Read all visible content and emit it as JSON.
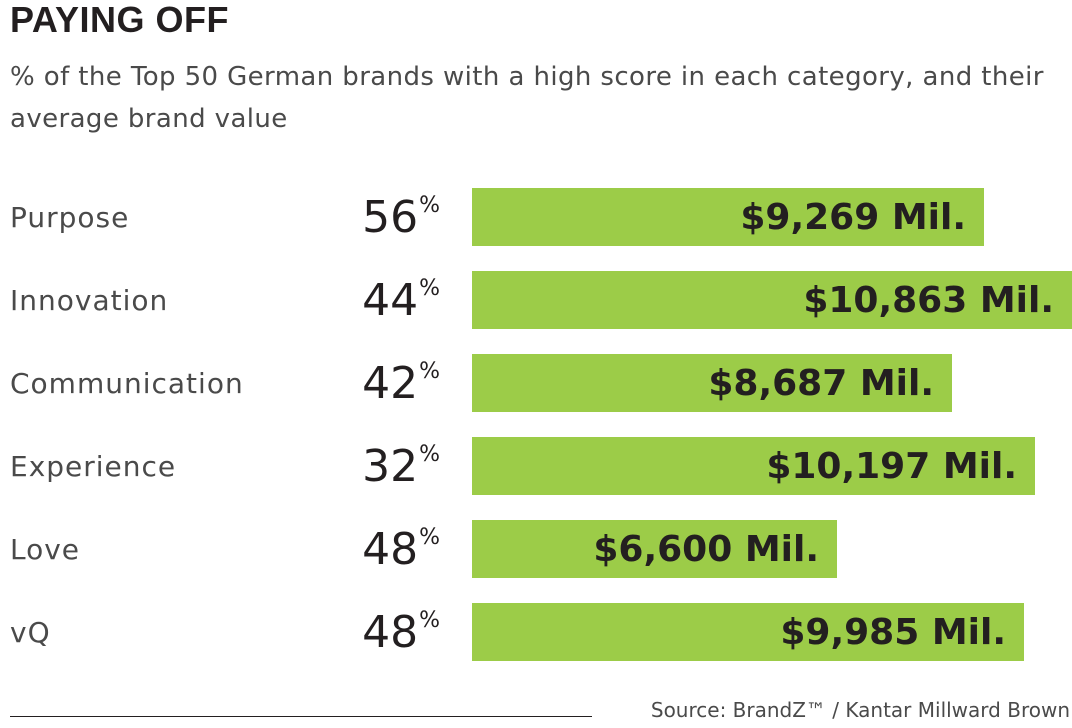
{
  "chart_data": {
    "type": "bar",
    "orientation": "horizontal",
    "title": "PAYING OFF",
    "subtitle": "% of the Top 50 German brands with a high score in each category, and their average brand value",
    "categories": [
      "Purpose",
      "Innovation",
      "Communication",
      "Experience",
      "Love",
      "vQ"
    ],
    "percent_high_score": [
      56,
      44,
      42,
      32,
      48,
      48
    ],
    "percent_suffix": "%",
    "series": [
      {
        "name": "Average brand value ($ Mil.)",
        "values": [
          9269,
          10863,
          8687,
          10197,
          6600,
          9985
        ],
        "labels": [
          "$9,269 Mil.",
          "$10,863 Mil.",
          "$8,687 Mil.",
          "$10,197 Mil.",
          "$6,600 Mil.",
          "$9,985 Mil."
        ]
      }
    ],
    "xlim": [
      0,
      10863
    ],
    "bar_color": "#9ccc48",
    "grid": false,
    "source": "Source: BrandZ™ / Kantar Millward Brown"
  }
}
